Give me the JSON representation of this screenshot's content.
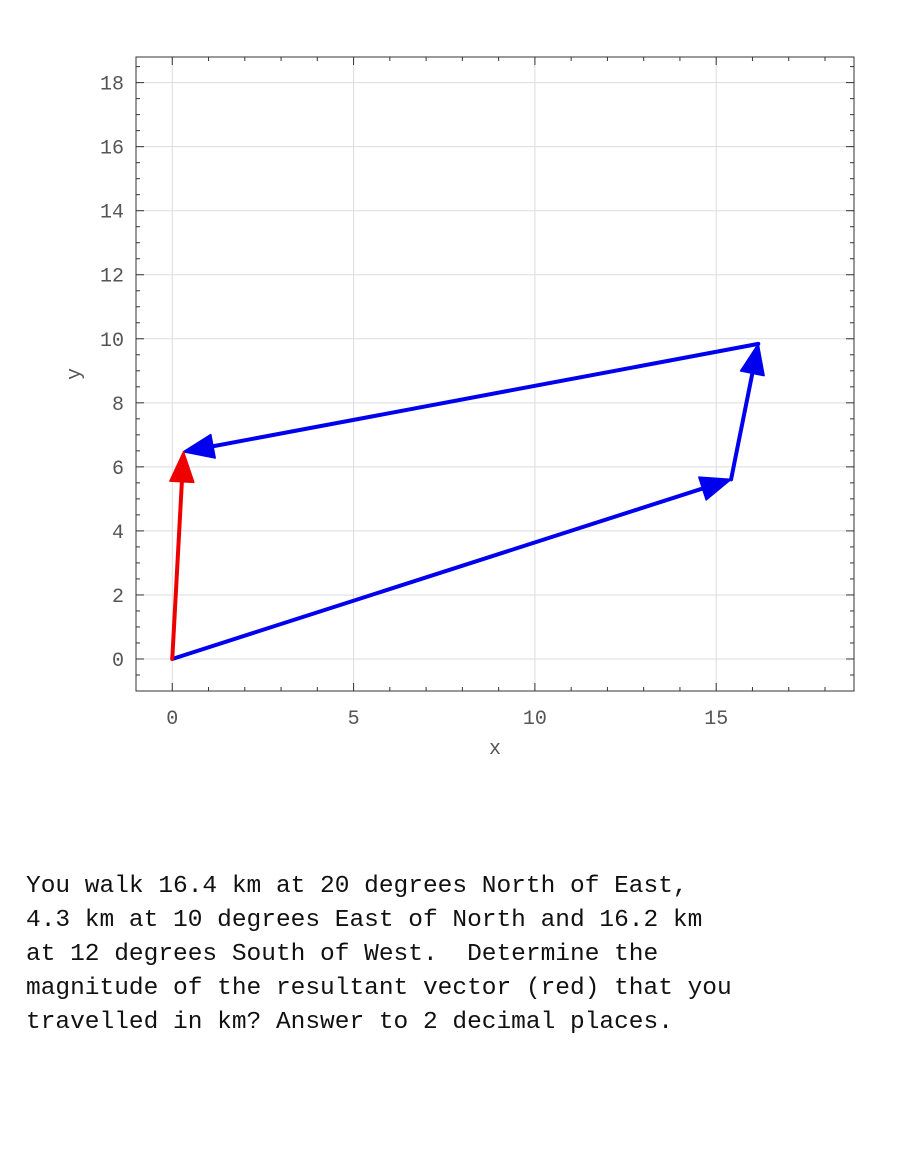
{
  "chart_data": {
    "type": "line",
    "title": "",
    "xlabel": "x",
    "ylabel": "y",
    "xlim": [
      -1,
      18.8
    ],
    "ylim": [
      -1,
      18.8
    ],
    "x_ticks": [
      0,
      5,
      10,
      15
    ],
    "y_ticks": [
      0,
      2,
      4,
      6,
      8,
      10,
      12,
      14,
      16,
      18
    ],
    "grid": true,
    "vectors": [
      {
        "name": "",
        "color": "#0000ee",
        "from": [
          0,
          0
        ],
        "to": [
          15.41,
          5.61
        ]
      },
      {
        "name": "",
        "color": "#0000ee",
        "from": [
          15.41,
          5.61
        ],
        "to": [
          16.16,
          9.84
        ]
      },
      {
        "name": "",
        "color": "#0000ee",
        "from": [
          16.16,
          9.84
        ],
        "to": [
          0.31,
          6.47
        ]
      },
      {
        "name": "",
        "color": "#ee0000",
        "from": [
          0,
          0
        ],
        "to": [
          0.31,
          6.47
        ]
      }
    ]
  },
  "question_lines": [
    "You walk 16.4 km at 20 degrees North of East,",
    "4.3 km at 10 degrees East of North and 16.2 km",
    "at 12 degrees South of West.  Determine the",
    "magnitude of the resultant vector (red) that you",
    "travelled in km? Answer to 2 decimal places."
  ]
}
